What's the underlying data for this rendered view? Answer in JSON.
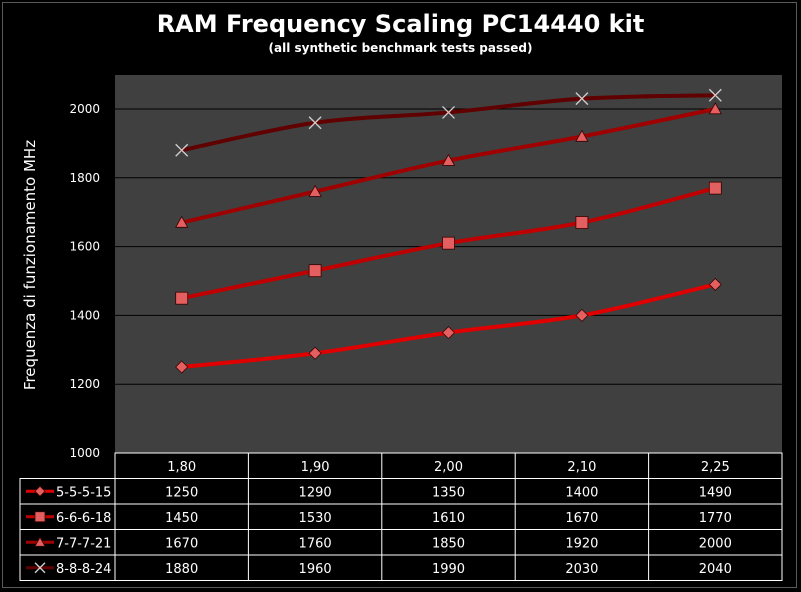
{
  "chart_data": {
    "type": "line",
    "title": "RAM Frequency Scaling PC14440 kit",
    "subtitle": "(all synthetic benchmark tests passed)",
    "ylabel": "Frequenza di  funzionamento  MHz",
    "xlabel": "",
    "ylim": [
      1000,
      2000
    ],
    "yticks": [
      1000,
      1200,
      1400,
      1600,
      1800,
      2000
    ],
    "categories": [
      "1,80",
      "1,90",
      "2,00",
      "2,10",
      "2,25"
    ],
    "grid": true,
    "legend": "data-table-left",
    "series": [
      {
        "name": "5-5-5-15",
        "values": [
          1250,
          1290,
          1350,
          1400,
          1490
        ],
        "color": "#e00000",
        "marker": "diamond"
      },
      {
        "name": "6-6-6-18",
        "values": [
          1450,
          1530,
          1610,
          1670,
          1770
        ],
        "color": "#c00000",
        "marker": "square"
      },
      {
        "name": "7-7-7-21",
        "values": [
          1670,
          1760,
          1850,
          1920,
          2000
        ],
        "color": "#a00000",
        "marker": "triangle"
      },
      {
        "name": "8-8-8-24",
        "values": [
          1880,
          1960,
          1990,
          2030,
          2040
        ],
        "color": "#600000",
        "marker": "x"
      }
    ],
    "colors": {
      "plot_bg": "#404040",
      "grid": "#000000",
      "text": "#ffffff"
    }
  }
}
